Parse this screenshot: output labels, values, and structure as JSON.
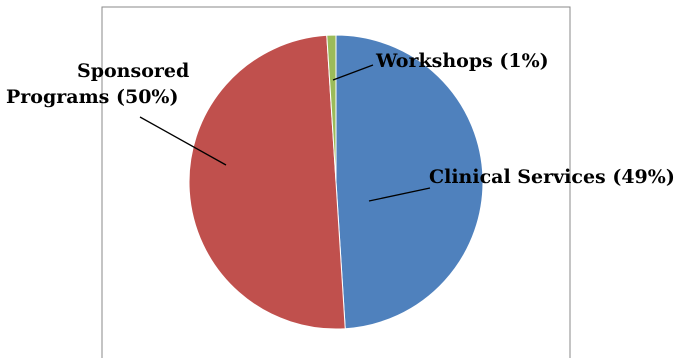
{
  "chart_data": {
    "type": "pie",
    "title": "",
    "start_angle_deg": 0,
    "direction": "clockwise",
    "slices": [
      {
        "name": "Clinical Services",
        "value": 49,
        "label": "Clinical Services (49%)",
        "color": "#4f81bd"
      },
      {
        "name": "Sponsored Programs",
        "value": 50,
        "label_line1": "Sponsored",
        "label_line2": "Programs (50%)",
        "color": "#c0504d"
      },
      {
        "name": "Workshops",
        "value": 1,
        "label": "Workshops (1%)",
        "color": "#9bbb59"
      }
    ],
    "legend": "none",
    "frame_color": "#888888"
  }
}
